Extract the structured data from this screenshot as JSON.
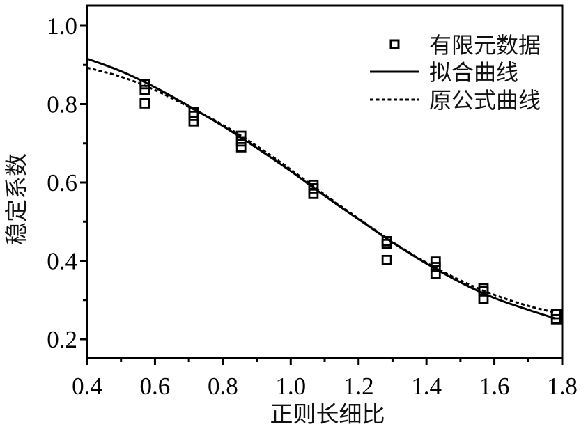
{
  "chart_data": {
    "type": "scatter",
    "title": "",
    "xlabel": "正则长细比",
    "ylabel": "稳定系数",
    "xlim": [
      0.4,
      1.8
    ],
    "ylim": [
      0.152,
      1.052
    ],
    "xticks": [
      0.4,
      0.6,
      0.8,
      1.0,
      1.2,
      1.4,
      1.6,
      1.8
    ],
    "xtick_labels": [
      "0.4",
      "0.6",
      "0.8",
      "1.0",
      "1.2",
      "1.4",
      "1.6",
      "1.8"
    ],
    "x_minor_ticks": [
      0.5,
      0.7,
      0.9,
      1.1,
      1.3,
      1.5,
      1.7
    ],
    "yticks": [
      0.2,
      0.4,
      0.6,
      0.8,
      1.0
    ],
    "ytick_labels": [
      "0.2",
      "0.4",
      "0.6",
      "0.8",
      "1.0"
    ],
    "y_minor_ticks": [
      0.3,
      0.5,
      0.7,
      0.9
    ],
    "grid": false,
    "legend_position": "upper right",
    "series": [
      {
        "name": "有限元数据",
        "style": "open-square-marker",
        "points": [
          [
            0.57,
            0.851
          ],
          [
            0.57,
            0.836
          ],
          [
            0.57,
            0.802
          ],
          [
            0.714,
            0.779
          ],
          [
            0.714,
            0.77
          ],
          [
            0.714,
            0.756
          ],
          [
            0.854,
            0.719
          ],
          [
            0.854,
            0.705
          ],
          [
            0.854,
            0.69
          ],
          [
            1.067,
            0.594
          ],
          [
            1.067,
            0.585
          ],
          [
            1.067,
            0.571
          ],
          [
            1.283,
            0.45
          ],
          [
            1.283,
            0.443
          ],
          [
            1.283,
            0.402
          ],
          [
            1.427,
            0.398
          ],
          [
            1.427,
            0.384
          ],
          [
            1.427,
            0.367
          ],
          [
            1.568,
            0.33
          ],
          [
            1.568,
            0.322
          ],
          [
            1.568,
            0.303
          ],
          [
            1.782,
            0.264
          ],
          [
            1.782,
            0.251
          ]
        ]
      },
      {
        "name": "拟合曲线",
        "style": "solid-line",
        "x": [
          0.4,
          0.5,
          0.6,
          0.7,
          0.8,
          0.9,
          1.0,
          1.1,
          1.2,
          1.3,
          1.4,
          1.5,
          1.6,
          1.7,
          1.78
        ],
        "values": [
          0.916,
          0.884,
          0.843,
          0.795,
          0.744,
          0.688,
          0.629,
          0.566,
          0.506,
          0.447,
          0.393,
          0.345,
          0.305,
          0.275,
          0.253
        ]
      },
      {
        "name": "原公式曲线",
        "style": "dashed-line",
        "x": [
          0.4,
          0.5,
          0.6,
          0.7,
          0.8,
          0.9,
          1.0,
          1.1,
          1.2,
          1.3,
          1.4,
          1.5,
          1.6,
          1.7,
          1.78
        ],
        "values": [
          0.893,
          0.87,
          0.836,
          0.793,
          0.747,
          0.693,
          0.633,
          0.569,
          0.508,
          0.448,
          0.395,
          0.35,
          0.313,
          0.285,
          0.268
        ]
      }
    ]
  },
  "legend": {
    "items": [
      {
        "label": "有限元数据",
        "symbol": "square-marker-icon"
      },
      {
        "label": "拟合曲线",
        "symbol": "solid-line-icon"
      },
      {
        "label": "原公式曲线",
        "symbol": "dashed-line-icon"
      }
    ]
  },
  "axes": {
    "x_label": "正则长细比",
    "y_label": "稳定系数"
  },
  "colors": {
    "ink": "#000000",
    "background": "#ffffff"
  }
}
